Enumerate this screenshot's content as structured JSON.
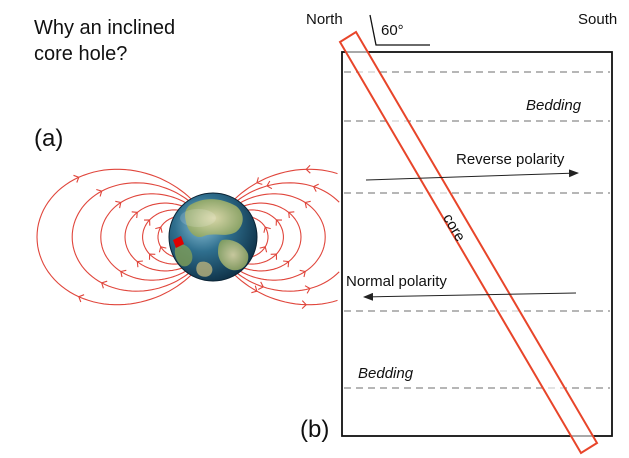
{
  "title_line1": "Why an inclined",
  "title_line2": "core hole?",
  "panel_a": "(a)",
  "panel_b": "(b)",
  "north": "North",
  "south": "South",
  "dip_angle": "60°",
  "core_label": "core",
  "bedding_upper": "Bedding",
  "bedding_lower": "Bedding",
  "reverse_polarity": "Reverse polarity",
  "normal_polarity": "Normal polarity",
  "colors": {
    "field_lines": "#e0463c",
    "core_outline": "#e8452a",
    "bedding": "#8a8a8a",
    "earth_ocean": "#2f6f8e",
    "earth_land": "#c9c28a",
    "site_marker": "#e00000"
  },
  "icons": {
    "earth": "earth-globe-icon",
    "site": "site-marker-icon",
    "dip": "dip-angle-symbol-icon"
  }
}
